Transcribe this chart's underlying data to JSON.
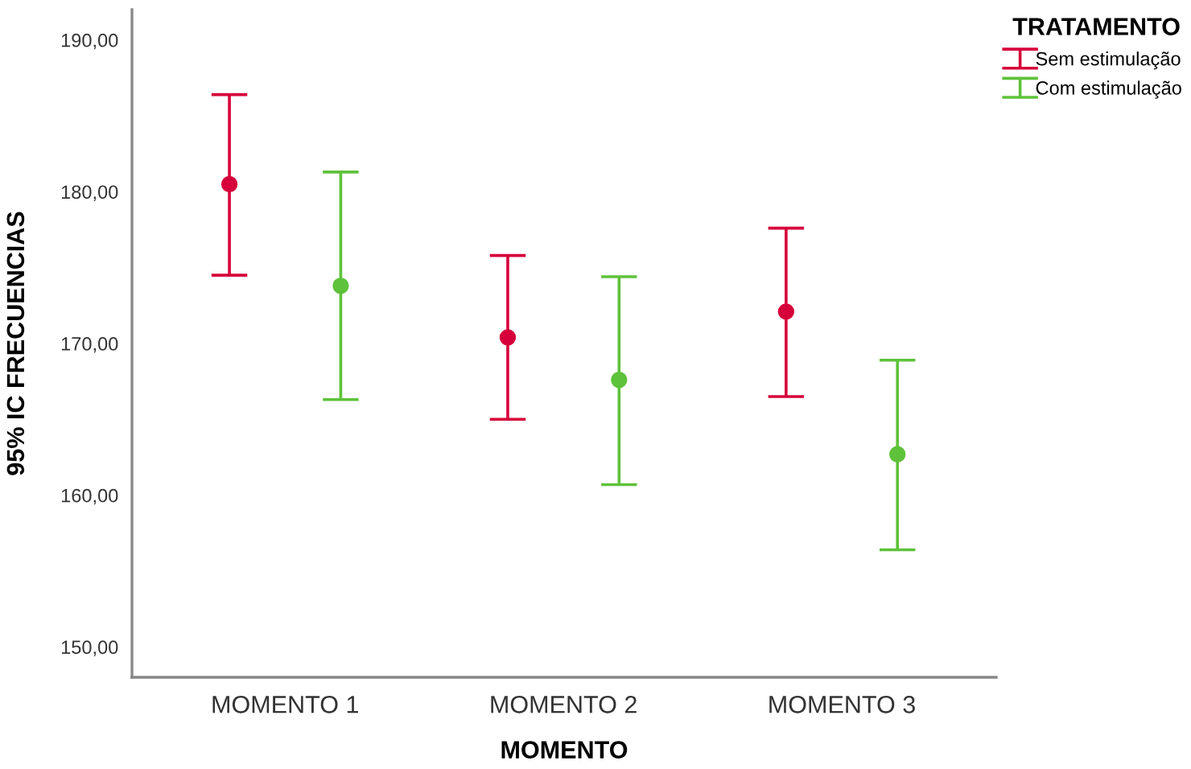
{
  "chart_data": {
    "type": "scatter",
    "xlabel": "MOMENTO",
    "ylabel": "95% IC FRECUENCIAS",
    "legend_title": "TRATAMENTO",
    "categories": [
      "MOMENTO 1",
      "MOMENTO 2",
      "MOMENTO 3"
    ],
    "series": [
      {
        "name": "Sem estimulação",
        "color": "#d6003a",
        "values": [
          180.5,
          170.4,
          172.1
        ],
        "errors": [
          [
            174.5,
            186.4
          ],
          [
            165.0,
            175.8
          ],
          [
            166.5,
            177.6
          ]
        ]
      },
      {
        "name": "Com estimulação",
        "color": "#5ec23a",
        "values": [
          173.8,
          167.6,
          162.7
        ],
        "errors": [
          [
            166.3,
            181.3
          ],
          [
            160.7,
            174.4
          ],
          [
            156.4,
            168.9
          ]
        ]
      }
    ],
    "ylim": [
      148,
      192
    ],
    "yticks": [
      {
        "value": 150,
        "label": "150,00"
      },
      {
        "value": 160,
        "label": "160,00"
      },
      {
        "value": 170,
        "label": "170,00"
      },
      {
        "value": 180,
        "label": "180,00"
      },
      {
        "value": 190,
        "label": "190,00"
      }
    ],
    "grid": false,
    "legend": "top right",
    "marker": "circle"
  }
}
